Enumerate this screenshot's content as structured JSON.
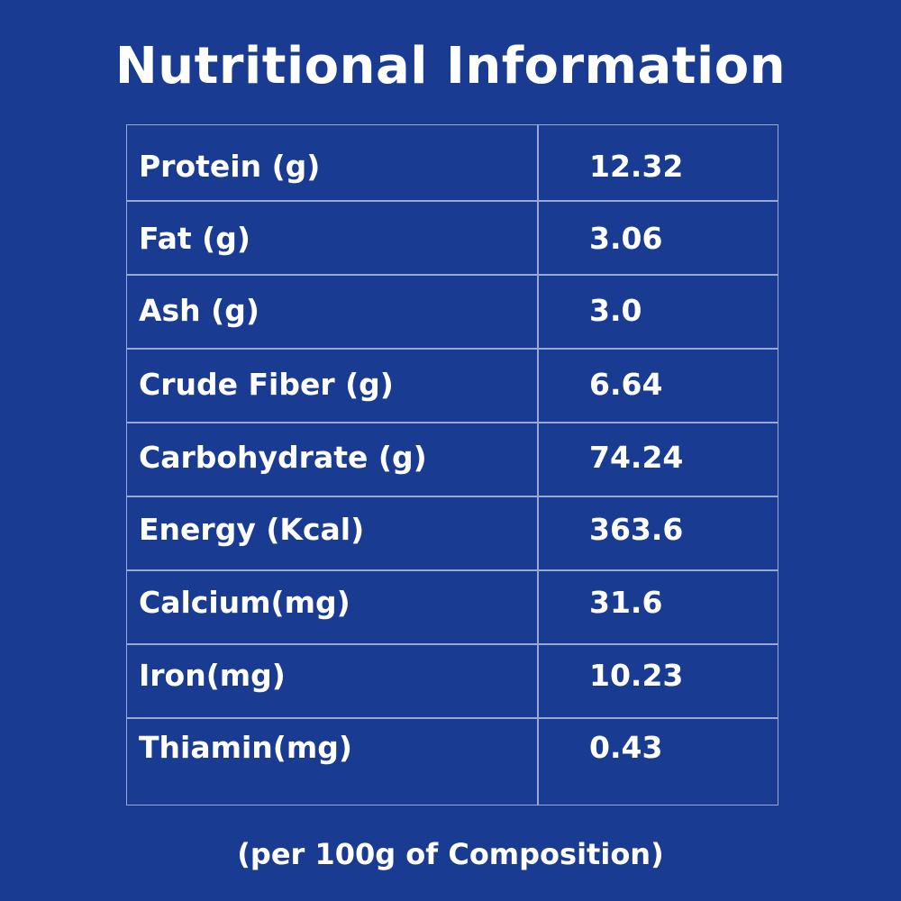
{
  "title": "Nutritional Information",
  "footnote": "(per 100g of Composition)",
  "colors": {
    "background": "#1a3b92",
    "text": "#ffffff",
    "grid": "#9aa8d4"
  },
  "rows": [
    {
      "label": "Protein (g)",
      "value": "12.32"
    },
    {
      "label": "Fat (g)",
      "value": "3.06"
    },
    {
      "label": "Ash (g)",
      "value": "3.0"
    },
    {
      "label": "Crude Fiber (g)",
      "value": "6.64"
    },
    {
      "label": "Carbohydrate (g)",
      "value": "74.24"
    },
    {
      "label": "Energy (Kcal)",
      "value": "363.6"
    },
    {
      "label": "Calcium(mg)",
      "value": "31.6"
    },
    {
      "label": "Iron(mg)",
      "value": "10.23"
    },
    {
      "label": "Thiamin(mg)",
      "value": "0.43"
    }
  ]
}
